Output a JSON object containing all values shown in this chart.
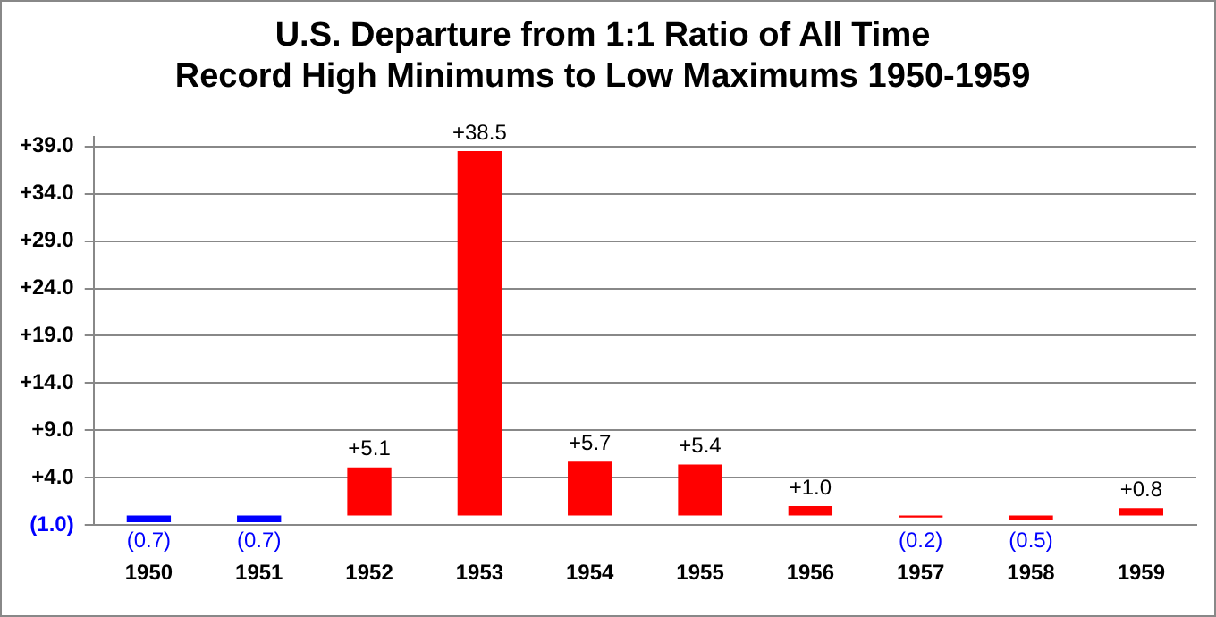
{
  "chart_data": {
    "type": "bar",
    "title": "U.S. Departure from 1:1 Ratio of All Time\nRecord High Minimums to Low Maximums 1950-1959",
    "categories": [
      "1950",
      "1951",
      "1952",
      "1953",
      "1954",
      "1955",
      "1956",
      "1957",
      "1958",
      "1959"
    ],
    "values": [
      -0.7,
      -0.7,
      5.1,
      38.5,
      5.7,
      5.4,
      1.0,
      -0.2,
      -0.5,
      0.8
    ],
    "colors": [
      "#0000ff",
      "#0000ff",
      "#ff0000",
      "#ff0000",
      "#ff0000",
      "#ff0000",
      "#ff0000",
      "#ff0000",
      "#ff0000",
      "#ff0000"
    ],
    "value_labels": [
      "(0.7)",
      "(0.7)",
      "+5.1",
      "+38.5",
      "+5.7",
      "+5.4",
      "+1.0",
      "(0.2)",
      "(0.5)",
      "+0.8"
    ],
    "ylim": [
      -1,
      40
    ],
    "yticks": [
      {
        "value": -1,
        "label": "(1.0)"
      },
      {
        "value": 4,
        "label": "+4.0"
      },
      {
        "value": 9,
        "label": "+9.0"
      },
      {
        "value": 14,
        "label": "+14.0"
      },
      {
        "value": 19,
        "label": "+19.0"
      },
      {
        "value": 24,
        "label": "+24.0"
      },
      {
        "value": 29,
        "label": "+29.0"
      },
      {
        "value": 34,
        "label": "+34.0"
      },
      {
        "value": 39,
        "label": "+39.0"
      }
    ],
    "grid": "y",
    "legend": false
  }
}
